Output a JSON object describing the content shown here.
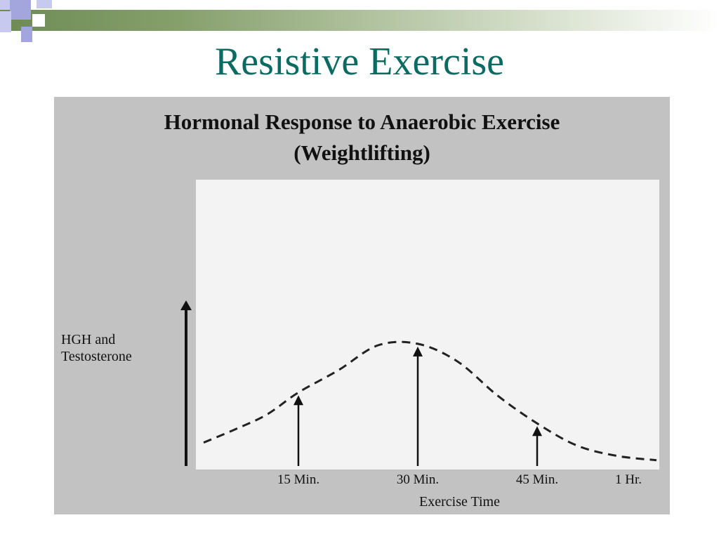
{
  "slide": {
    "title": "Resistive Exercise",
    "colors": {
      "title": "#0b6b62",
      "bar": "#6d8a55",
      "square_light": "#c7c9ee",
      "square_dark": "#a2a6dc"
    }
  },
  "chart_data": {
    "type": "line",
    "title": "Hormonal Response to Anaerobic Exercise",
    "subtitle": "(Weightlifting)",
    "ylabel": "HGH and Testosterone",
    "xlabel": "Exercise Time",
    "x_ticks": [
      "15 Min.",
      "30 Min.",
      "45 Min.",
      "1 Hr."
    ],
    "x_tick_values": [
      15,
      30,
      45,
      60
    ],
    "xlim": [
      0,
      60
    ],
    "ylim": [
      0,
      1
    ],
    "y_axis_arrow": true,
    "line_style": "dashed",
    "series": [
      {
        "x": [
          0,
          5,
          10,
          15,
          20,
          25,
          30,
          35,
          40,
          45,
          50,
          55,
          60
        ],
        "values": [
          0.14,
          0.23,
          0.33,
          0.48,
          0.63,
          0.8,
          0.81,
          0.69,
          0.46,
          0.27,
          0.12,
          0.05,
          0.02
        ]
      }
    ],
    "markers": [
      {
        "label": "15 Min.",
        "x": 15,
        "y": 0.48
      },
      {
        "label": "30 Min.",
        "x": 30,
        "y": 0.81
      },
      {
        "label": "45 Min.",
        "x": 45,
        "y": 0.27
      }
    ],
    "grid": false,
    "legend": "none"
  }
}
